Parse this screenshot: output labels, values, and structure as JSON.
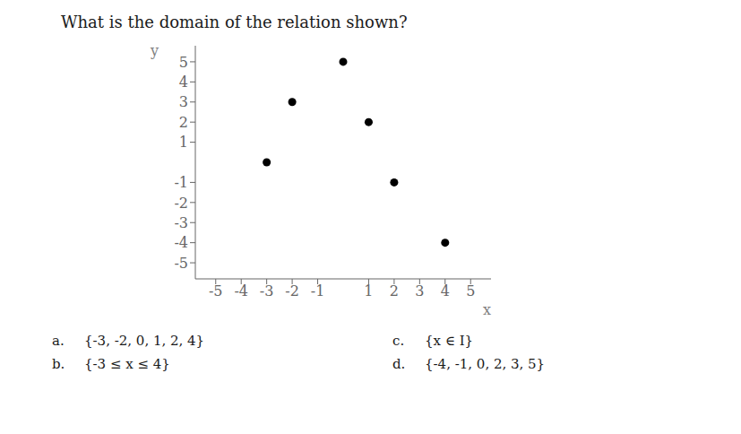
{
  "chart_data": {
    "type": "scatter",
    "title": "What is the domain of the relation shown?",
    "x_label": "x",
    "y_label": "y",
    "x": [
      -3,
      -2,
      0,
      1,
      2,
      4
    ],
    "values": [
      0,
      3,
      5,
      2,
      -1,
      -4
    ],
    "xlim": [
      -5.8,
      5.8
    ],
    "ylim": [
      -5.8,
      5.8
    ],
    "xticks": [
      -5,
      -4,
      -3,
      -2,
      -1,
      1,
      2,
      3,
      4,
      5
    ],
    "yticks": [
      -5,
      -4,
      -3,
      -2,
      -1,
      1,
      2,
      3,
      4,
      5
    ],
    "grid": false,
    "annotations": [
      [
        "a.",
        "{-3, -2, 0, 1, 2, 4}"
      ],
      [
        "b.",
        "{-3 ≤ x ≤ 4}"
      ],
      [
        "c.",
        "{x ∈ I}"
      ],
      [
        "d.",
        "{-4, -1, 0, 2, 3, 5}"
      ]
    ]
  }
}
